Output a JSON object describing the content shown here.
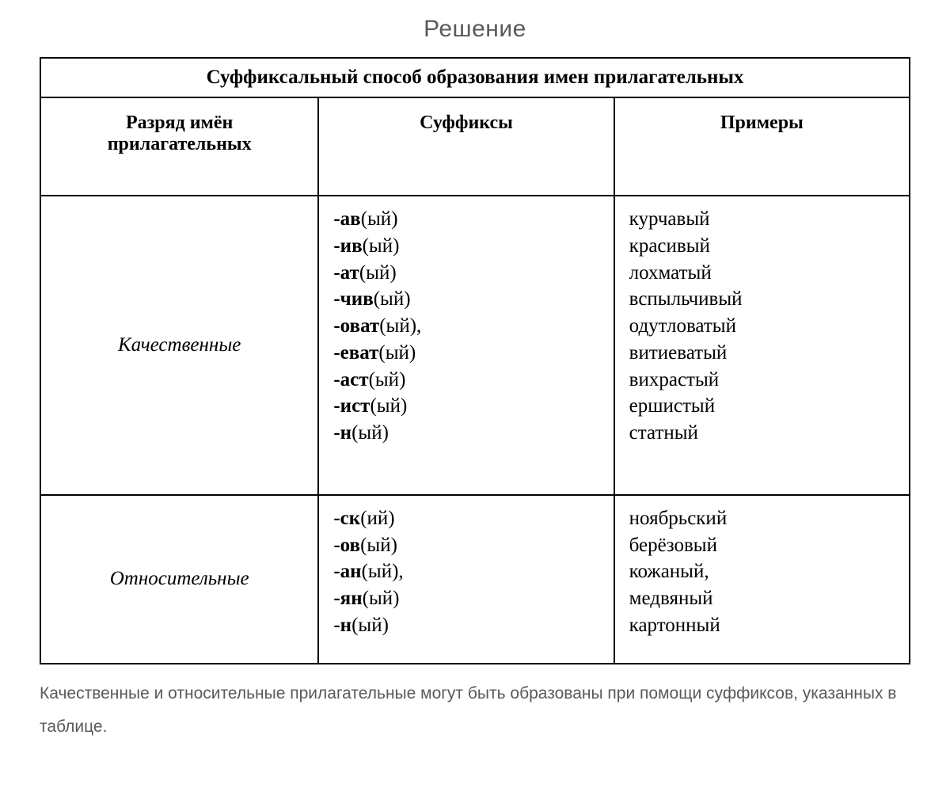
{
  "title": "Решение",
  "table_title": "Суффиксальный способ образования имен прилагательных",
  "headers": {
    "col1_line1": "Разряд имён",
    "col1_line2": "прилагательных",
    "col2": "Суффиксы",
    "col3": "Примеры"
  },
  "rows": [
    {
      "category": "Качественные",
      "suffixes": [
        {
          "bold": "-ав",
          "rest": "(ый)"
        },
        {
          "bold": "-ив",
          "rest": "(ый)"
        },
        {
          "bold": "-ат",
          "rest": "(ый)"
        },
        {
          "bold": "-чив",
          "rest": "(ый)"
        },
        {
          "bold": "-оват",
          "rest": "(ый),"
        },
        {
          "bold": "-еват",
          "rest": "(ый)"
        },
        {
          "bold": "-аст",
          "rest": "(ый)"
        },
        {
          "bold": "-ист",
          "rest": "(ый)"
        },
        {
          "bold": "-н",
          "rest": "(ый)"
        }
      ],
      "examples": [
        "курчавый",
        "красивый",
        "лохматый",
        "вспыльчивый",
        "одутловатый",
        "витиеватый",
        "вихрастый",
        "ершистый",
        "статный"
      ]
    },
    {
      "category": "Относительные",
      "suffixes": [
        {
          "bold": "-ск",
          "rest": "(ий)"
        },
        {
          "bold": "-ов",
          "rest": "(ый)"
        },
        {
          "bold": "-ан",
          "rest": "(ый),"
        },
        {
          "bold": "-ян",
          "rest": "(ый)"
        },
        {
          "bold": "-н",
          "rest": "(ый)"
        }
      ],
      "examples": [
        "ноябрьский",
        "берёзовый",
        "кожаный,",
        "медвяный",
        "картонный"
      ]
    }
  ],
  "footnote": "Качественные и относительные прилагательные могут быть образованы при помощи суффиксов, указанных в таблице."
}
